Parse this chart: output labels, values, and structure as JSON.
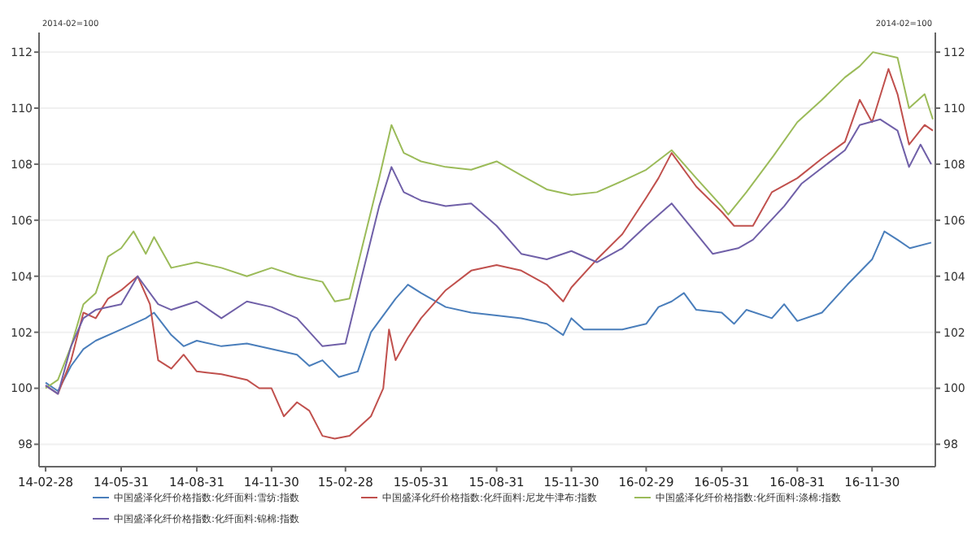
{
  "chart_data": {
    "type": "line",
    "ylabel": "2014-02=100",
    "y2label": "2014-02=100",
    "xlim": [
      "2014-02-20",
      "2017-02-15"
    ],
    "xticks": [
      {
        "value": "2014-02-28",
        "label": "14-02-28"
      },
      {
        "value": "2014-05-31",
        "label": "14-05-31"
      },
      {
        "value": "2014-08-31",
        "label": "14-08-31"
      },
      {
        "value": "2014-11-30",
        "label": "14-11-30"
      },
      {
        "value": "2015-02-28",
        "label": "15-02-28"
      },
      {
        "value": "2015-05-31",
        "label": "15-05-31"
      },
      {
        "value": "2015-08-31",
        "label": "15-08-31"
      },
      {
        "value": "2015-11-30",
        "label": "15-11-30"
      },
      {
        "value": "2016-02-29",
        "label": "16-02-29"
      },
      {
        "value": "2016-05-31",
        "label": "16-05-31"
      },
      {
        "value": "2016-08-31",
        "label": "16-08-31"
      },
      {
        "value": "2016-11-30",
        "label": "16-11-30"
      }
    ],
    "ylim": [
      97.2,
      112.7
    ],
    "yticks": [
      98,
      100,
      102,
      104,
      106,
      108,
      110,
      112
    ],
    "y2lim": [
      97.2,
      112.7
    ],
    "y2ticks": [
      98,
      100,
      102,
      104,
      106,
      108,
      110,
      112
    ],
    "grid": "y",
    "legend": "bottom",
    "marker": "none",
    "line_style": "solid",
    "series": [
      {
        "name": "中国盛泽化纤价格指数:化纤面料:雪纺:指数",
        "color": "#4a7ebb",
        "x": [
          "2014-02-28",
          "2014-03-15",
          "2014-03-31",
          "2014-04-15",
          "2014-04-30",
          "2014-05-31",
          "2014-06-30",
          "2014-07-10",
          "2014-07-31",
          "2014-08-15",
          "2014-08-31",
          "2014-09-30",
          "2014-10-31",
          "2014-11-30",
          "2014-12-31",
          "2015-01-15",
          "2015-01-31",
          "2015-02-20",
          "2015-03-15",
          "2015-03-31",
          "2015-04-30",
          "2015-05-15",
          "2015-05-31",
          "2015-06-30",
          "2015-07-31",
          "2015-08-31",
          "2015-09-30",
          "2015-10-31",
          "2015-11-20",
          "2015-11-30",
          "2015-12-15",
          "2016-01-31",
          "2016-02-29",
          "2016-03-15",
          "2016-03-31",
          "2016-04-15",
          "2016-04-30",
          "2016-05-31",
          "2016-06-15",
          "2016-06-30",
          "2016-07-31",
          "2016-08-15",
          "2016-08-31",
          "2016-09-30",
          "2016-10-31",
          "2016-11-30",
          "2016-12-15",
          "2016-12-31",
          "2017-01-15",
          "2017-02-10"
        ],
        "values": [
          100.2,
          99.9,
          100.8,
          101.4,
          101.7,
          102.1,
          102.5,
          102.7,
          101.9,
          101.5,
          101.7,
          101.5,
          101.6,
          101.4,
          101.2,
          100.8,
          101.0,
          100.4,
          100.6,
          102.0,
          103.2,
          103.7,
          103.4,
          102.9,
          102.7,
          102.6,
          102.5,
          102.3,
          101.9,
          102.5,
          102.1,
          102.1,
          102.3,
          102.9,
          103.1,
          103.4,
          102.8,
          102.7,
          102.3,
          102.8,
          102.5,
          103.0,
          102.4,
          102.7,
          103.7,
          104.6,
          105.6,
          105.3,
          105.0,
          105.2
        ]
      },
      {
        "name": "中国盛泽化纤价格指数:化纤面料:尼龙牛津布:指数",
        "color": "#c0504d",
        "x": [
          "2014-02-28",
          "2014-03-15",
          "2014-03-31",
          "2014-04-15",
          "2014-04-30",
          "2014-05-15",
          "2014-05-31",
          "2014-06-20",
          "2014-07-05",
          "2014-07-15",
          "2014-07-31",
          "2014-08-15",
          "2014-08-31",
          "2014-09-30",
          "2014-10-31",
          "2014-11-15",
          "2014-11-30",
          "2014-12-15",
          "2014-12-31",
          "2015-01-15",
          "2015-01-31",
          "2015-02-15",
          "2015-03-05",
          "2015-03-31",
          "2015-04-15",
          "2015-04-22",
          "2015-04-30",
          "2015-05-15",
          "2015-05-31",
          "2015-06-30",
          "2015-07-31",
          "2015-08-31",
          "2015-09-30",
          "2015-10-31",
          "2015-11-20",
          "2015-11-30",
          "2015-12-31",
          "2016-01-31",
          "2016-02-29",
          "2016-03-15",
          "2016-03-31",
          "2016-04-30",
          "2016-05-31",
          "2016-06-15",
          "2016-07-08",
          "2016-07-31",
          "2016-08-31",
          "2016-09-30",
          "2016-10-28",
          "2016-11-15",
          "2016-11-30",
          "2016-12-20",
          "2016-12-31",
          "2017-01-14",
          "2017-02-02",
          "2017-02-12"
        ],
        "values": [
          100.1,
          99.8,
          101.0,
          102.7,
          102.5,
          103.2,
          103.5,
          104.0,
          103.0,
          101.0,
          100.7,
          101.2,
          100.6,
          100.5,
          100.3,
          100.0,
          100.0,
          99.0,
          99.5,
          99.2,
          98.3,
          98.2,
          98.3,
          99.0,
          100.0,
          102.1,
          101.0,
          101.8,
          102.5,
          103.5,
          104.2,
          104.4,
          104.2,
          103.7,
          103.1,
          103.6,
          104.6,
          105.5,
          106.8,
          107.5,
          108.4,
          107.2,
          106.3,
          105.8,
          105.8,
          107.0,
          107.5,
          108.2,
          108.8,
          110.3,
          109.5,
          111.4,
          110.5,
          108.7,
          109.4,
          109.2
        ]
      },
      {
        "name": "中国盛泽化纤价格指数:化纤面料:涤棉:指数",
        "color": "#9bbb59",
        "x": [
          "2014-02-28",
          "2014-03-15",
          "2014-03-31",
          "2014-04-15",
          "2014-04-30",
          "2014-05-15",
          "2014-05-31",
          "2014-06-15",
          "2014-06-30",
          "2014-07-10",
          "2014-07-31",
          "2014-08-31",
          "2014-09-30",
          "2014-10-31",
          "2014-11-30",
          "2014-12-31",
          "2015-01-31",
          "2015-02-15",
          "2015-03-05",
          "2015-03-20",
          "2015-04-10",
          "2015-04-25",
          "2015-05-10",
          "2015-05-31",
          "2015-06-30",
          "2015-07-31",
          "2015-08-31",
          "2015-09-30",
          "2015-10-31",
          "2015-11-30",
          "2015-12-31",
          "2016-01-31",
          "2016-02-29",
          "2016-03-31",
          "2016-04-30",
          "2016-05-31",
          "2016-06-08",
          "2016-06-30",
          "2016-08-02",
          "2016-08-31",
          "2016-09-30",
          "2016-10-28",
          "2016-11-15",
          "2016-12-01",
          "2016-12-31",
          "2017-01-14",
          "2017-02-02",
          "2017-02-12"
        ],
        "values": [
          100.0,
          100.3,
          101.5,
          103.0,
          103.4,
          104.7,
          105.0,
          105.6,
          104.8,
          105.4,
          104.3,
          104.5,
          104.3,
          104.0,
          104.3,
          104.0,
          103.8,
          103.1,
          103.2,
          105.0,
          107.5,
          109.4,
          108.4,
          108.1,
          107.9,
          107.8,
          108.1,
          107.6,
          107.1,
          106.9,
          107.0,
          107.4,
          107.8,
          108.5,
          107.5,
          106.5,
          106.2,
          107.0,
          108.3,
          109.5,
          110.3,
          111.1,
          111.5,
          112.0,
          111.8,
          110.0,
          110.5,
          109.6
        ]
      },
      {
        "name": "中国盛泽化纤价格指数:化纤面料:锦棉:指数",
        "color": "#7060a8",
        "x": [
          "2014-02-28",
          "2014-03-15",
          "2014-03-31",
          "2014-04-15",
          "2014-04-30",
          "2014-05-31",
          "2014-06-20",
          "2014-07-15",
          "2014-07-31",
          "2014-08-31",
          "2014-09-30",
          "2014-10-31",
          "2014-11-30",
          "2014-12-31",
          "2015-01-31",
          "2015-02-28",
          "2015-03-20",
          "2015-04-10",
          "2015-04-25",
          "2015-05-10",
          "2015-05-31",
          "2015-06-30",
          "2015-07-31",
          "2015-08-31",
          "2015-09-30",
          "2015-10-31",
          "2015-11-30",
          "2015-12-31",
          "2016-01-31",
          "2016-02-29",
          "2016-03-31",
          "2016-05-20",
          "2016-06-20",
          "2016-07-08",
          "2016-08-15",
          "2016-09-05",
          "2016-10-28",
          "2016-11-15",
          "2016-12-10",
          "2016-12-31",
          "2017-01-14",
          "2017-01-28",
          "2017-02-10"
        ],
        "values": [
          100.1,
          99.8,
          101.5,
          102.5,
          102.8,
          103.0,
          104.0,
          103.0,
          102.8,
          103.1,
          102.5,
          103.1,
          102.9,
          102.5,
          101.5,
          101.6,
          104.0,
          106.5,
          107.9,
          107.0,
          106.7,
          106.5,
          106.6,
          105.8,
          104.8,
          104.6,
          104.9,
          104.5,
          105.0,
          105.8,
          106.6,
          104.8,
          105.0,
          105.3,
          106.5,
          107.3,
          108.5,
          109.4,
          109.6,
          109.2,
          107.9,
          108.7,
          108.0
        ]
      }
    ]
  }
}
